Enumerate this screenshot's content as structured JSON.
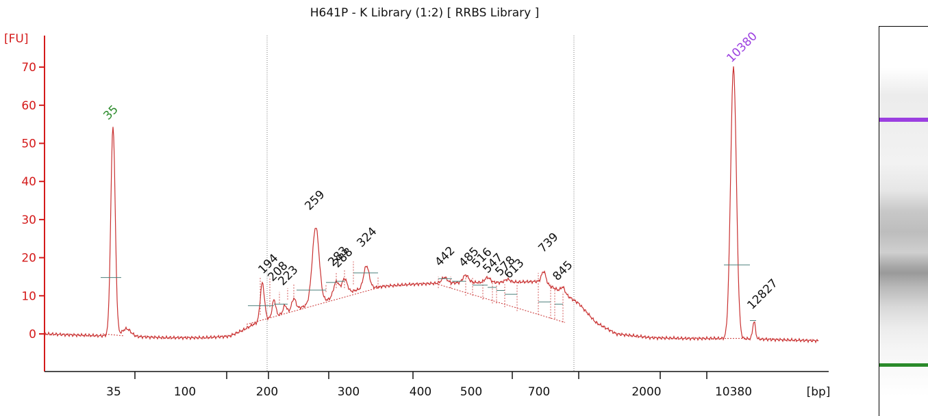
{
  "chart_data": {
    "type": "line",
    "title": "H641P - K Library (1:2)  [ RRBS Library ]",
    "y_unit_label": "[FU]",
    "x_unit_label": "[bp]",
    "y_ticks": [
      0,
      10,
      20,
      30,
      40,
      50,
      60,
      70
    ],
    "ylim": [
      -10,
      78
    ],
    "x_tick_labels": [
      "35",
      "100",
      "200",
      "300",
      "400",
      "500",
      "700",
      "2000",
      "10380"
    ],
    "marker_colors": {
      "lower": "#2a8a2a",
      "upper": "#9b3fe0"
    },
    "axis_color": "#d41a1a",
    "trace_color": "#c93030",
    "peaks": [
      {
        "label": "35",
        "fu": 54.5,
        "color": "#2a8a2a"
      },
      {
        "label": "194",
        "fu": 14.8,
        "color": "#111111"
      },
      {
        "label": "208",
        "fu": 12.0,
        "color": "#111111"
      },
      {
        "label": "223",
        "fu": 12.8,
        "color": "#111111"
      },
      {
        "label": "259",
        "fu": 31.0,
        "color": "#111111"
      },
      {
        "label": "283",
        "fu": 17.5,
        "color": "#111111"
      },
      {
        "label": "288",
        "fu": 17.8,
        "color": "#111111"
      },
      {
        "label": "324",
        "fu": 20.0,
        "color": "#111111"
      },
      {
        "label": "442",
        "fu": 15.2,
        "color": "#111111"
      },
      {
        "label": "485",
        "fu": 16.0,
        "color": "#111111"
      },
      {
        "label": "516",
        "fu": 15.0,
        "color": "#111111"
      },
      {
        "label": "547",
        "fu": 14.2,
        "color": "#111111"
      },
      {
        "label": "578",
        "fu": 13.5,
        "color": "#111111"
      },
      {
        "label": "613",
        "fu": 13.0,
        "color": "#111111"
      },
      {
        "label": "739",
        "fu": 16.5,
        "color": "#111111"
      },
      {
        "label": "845",
        "fu": 14.5,
        "color": "#111111"
      },
      {
        "label": "10380",
        "fu": 70.0,
        "color": "#9b3fe0"
      },
      {
        "label": "12827",
        "fu": 4.0,
        "color": "#111111"
      }
    ],
    "region_boundaries": [
      "200",
      "1000"
    ],
    "grid": false,
    "legend": "none"
  }
}
